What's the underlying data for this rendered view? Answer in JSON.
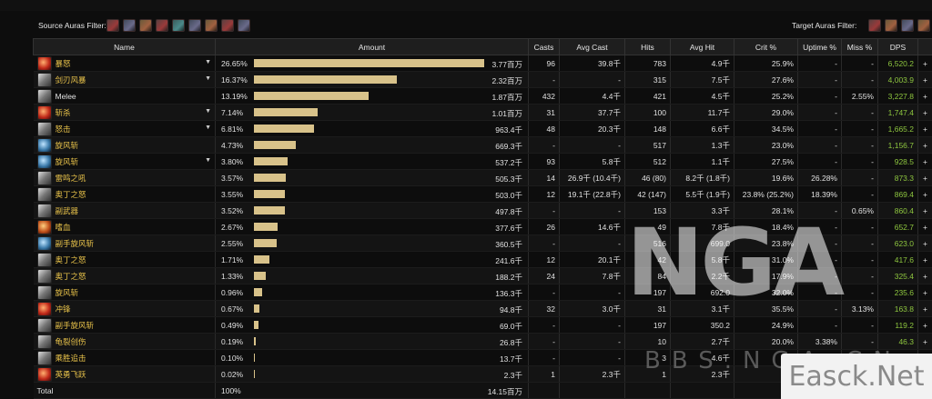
{
  "filters": {
    "source_label": "Source Auras Filter:",
    "target_label": "Target Auras Filter:",
    "source_icons": [
      "aura-icon-1",
      "aura-icon-2",
      "aura-icon-3",
      "aura-icon-4",
      "aura-icon-5",
      "aura-icon-6",
      "aura-icon-7",
      "aura-icon-8",
      "aura-icon-9"
    ],
    "target_icons": [
      "aura-icon-1",
      "aura-icon-2",
      "aura-icon-3",
      "aura-icon-4"
    ]
  },
  "table": {
    "headers": [
      "Name",
      "Amount",
      "Casts",
      "Avg Cast",
      "Hits",
      "Avg Hit",
      "Crit %",
      "Uptime %",
      "Miss %",
      "DPS"
    ],
    "rows": [
      {
        "name": "暴怒",
        "icon": "ic-red",
        "expand": true,
        "pct": "26.65%",
        "bar": 0.98,
        "amount": "3.77百万",
        "casts": "96",
        "avg_cast": "39.8千",
        "hits": "783",
        "avg_hit": "4.9千",
        "crit": "25.9%",
        "uptime": "-",
        "miss": "-",
        "dps": "6,520.2"
      },
      {
        "name": "剑刃风暴",
        "icon": "ic-grey",
        "expand": true,
        "pct": "16.37%",
        "bar": 0.61,
        "amount": "2.32百万",
        "casts": "-",
        "avg_cast": "-",
        "hits": "315",
        "avg_hit": "7.5千",
        "crit": "27.6%",
        "uptime": "-",
        "miss": "-",
        "dps": "4,003.9"
      },
      {
        "name": "Melee",
        "icon": "ic-grey",
        "expand": false,
        "white": true,
        "pct": "13.19%",
        "bar": 0.49,
        "amount": "1.87百万",
        "casts": "432",
        "avg_cast": "4.4千",
        "hits": "421",
        "avg_hit": "4.5千",
        "crit": "25.2%",
        "uptime": "-",
        "miss": "2.55%",
        "dps": "3,227.8"
      },
      {
        "name": "斩杀",
        "icon": "ic-red",
        "expand": true,
        "pct": "7.14%",
        "bar": 0.27,
        "amount": "1.01百万",
        "casts": "31",
        "avg_cast": "37.7千",
        "hits": "100",
        "avg_hit": "11.7千",
        "crit": "29.0%",
        "uptime": "-",
        "miss": "-",
        "dps": "1,747.4"
      },
      {
        "name": "怒击",
        "icon": "ic-grey",
        "expand": true,
        "pct": "6.81%",
        "bar": 0.255,
        "amount": "963.4千",
        "casts": "48",
        "avg_cast": "20.3千",
        "hits": "148",
        "avg_hit": "6.6千",
        "crit": "34.5%",
        "uptime": "-",
        "miss": "-",
        "dps": "1,665.2"
      },
      {
        "name": "旋风斩",
        "icon": "ic-blue",
        "expand": false,
        "pct": "4.73%",
        "bar": 0.178,
        "amount": "669.3千",
        "casts": "-",
        "avg_cast": "-",
        "hits": "517",
        "avg_hit": "1.3千",
        "crit": "23.0%",
        "uptime": "-",
        "miss": "-",
        "dps": "1,156.7"
      },
      {
        "name": "旋风斩",
        "icon": "ic-blue",
        "expand": true,
        "pct": "3.80%",
        "bar": 0.142,
        "amount": "537.2千",
        "casts": "93",
        "avg_cast": "5.8千",
        "hits": "512",
        "avg_hit": "1.1千",
        "crit": "27.5%",
        "uptime": "-",
        "miss": "-",
        "dps": "928.5"
      },
      {
        "name": "雷鸣之吼",
        "icon": "ic-grey",
        "expand": false,
        "pct": "3.57%",
        "bar": 0.134,
        "amount": "505.3千",
        "casts": "14",
        "avg_cast": "26.9千 (10.4千)",
        "hits": "46 (80)",
        "avg_hit": "8.2千 (1.8千)",
        "crit": "19.6%",
        "uptime": "26.28%",
        "miss": "-",
        "dps": "873.3"
      },
      {
        "name": "奥丁之怒",
        "icon": "ic-grey",
        "expand": false,
        "pct": "3.55%",
        "bar": 0.133,
        "amount": "503.0千",
        "casts": "12",
        "avg_cast": "19.1千 (22.8千)",
        "hits": "42 (147)",
        "avg_hit": "5.5千 (1.9千)",
        "crit": "23.8% (25.2%)",
        "uptime": "18.39%",
        "miss": "-",
        "dps": "869.4"
      },
      {
        "name": "副武器",
        "icon": "ic-grey",
        "expand": false,
        "pct": "3.52%",
        "bar": 0.132,
        "amount": "497.8千",
        "casts": "-",
        "avg_cast": "-",
        "hits": "153",
        "avg_hit": "3.3千",
        "crit": "28.1%",
        "uptime": "-",
        "miss": "0.65%",
        "dps": "860.4"
      },
      {
        "name": "嗜血",
        "icon": "ic-orange",
        "expand": false,
        "pct": "2.67%",
        "bar": 0.1,
        "amount": "377.6千",
        "casts": "26",
        "avg_cast": "14.6千",
        "hits": "49",
        "avg_hit": "7.8千",
        "crit": "18.4%",
        "uptime": "-",
        "miss": "-",
        "dps": "652.7"
      },
      {
        "name": "副手旋风斩",
        "icon": "ic-blue",
        "expand": false,
        "pct": "2.55%",
        "bar": 0.096,
        "amount": "360.5千",
        "casts": "-",
        "avg_cast": "-",
        "hits": "516",
        "avg_hit": "699.0",
        "crit": "23.8%",
        "uptime": "-",
        "miss": "-",
        "dps": "623.0"
      },
      {
        "name": "奥丁之怒",
        "icon": "ic-grey",
        "expand": false,
        "pct": "1.71%",
        "bar": 0.064,
        "amount": "241.6千",
        "casts": "12",
        "avg_cast": "20.1千",
        "hits": "42",
        "avg_hit": "5.8千",
        "crit": "31.0%",
        "uptime": "-",
        "miss": "-",
        "dps": "417.6"
      },
      {
        "name": "奥丁之怒",
        "icon": "ic-grey",
        "expand": false,
        "pct": "1.33%",
        "bar": 0.05,
        "amount": "188.2千",
        "casts": "24",
        "avg_cast": "7.8千",
        "hits": "84",
        "avg_hit": "2.2千",
        "crit": "17.9%",
        "uptime": "-",
        "miss": "-",
        "dps": "325.4"
      },
      {
        "name": "旋风斩",
        "icon": "ic-grey",
        "expand": false,
        "pct": "0.96%",
        "bar": 0.036,
        "amount": "136.3千",
        "casts": "-",
        "avg_cast": "-",
        "hits": "197",
        "avg_hit": "692.0",
        "crit": "32.0%",
        "uptime": "-",
        "miss": "-",
        "dps": "235.6"
      },
      {
        "name": "冲锋",
        "icon": "ic-red",
        "expand": false,
        "pct": "0.67%",
        "bar": 0.025,
        "amount": "94.8千",
        "casts": "32",
        "avg_cast": "3.0千",
        "hits": "31",
        "avg_hit": "3.1千",
        "crit": "35.5%",
        "uptime": "-",
        "miss": "3.13%",
        "dps": "163.8"
      },
      {
        "name": "副手旋风斩",
        "icon": "ic-grey",
        "expand": false,
        "pct": "0.49%",
        "bar": 0.018,
        "amount": "69.0千",
        "casts": "-",
        "avg_cast": "-",
        "hits": "197",
        "avg_hit": "350.2",
        "crit": "24.9%",
        "uptime": "-",
        "miss": "-",
        "dps": "119.2"
      },
      {
        "name": "龟裂创伤",
        "icon": "ic-grey",
        "expand": false,
        "pct": "0.19%",
        "bar": 0.007,
        "amount": "26.8千",
        "casts": "-",
        "avg_cast": "-",
        "hits": "10",
        "avg_hit": "2.7千",
        "crit": "20.0%",
        "uptime": "3.38%",
        "miss": "-",
        "dps": "46.3"
      },
      {
        "name": "乘胜追击",
        "icon": "ic-grey",
        "expand": false,
        "pct": "0.10%",
        "bar": 0.004,
        "amount": "13.7千",
        "casts": "-",
        "avg_cast": "-",
        "hits": "3",
        "avg_hit": "4.6千",
        "crit": "-",
        "uptime": "-",
        "miss": "-",
        "dps": "23.7"
      },
      {
        "name": "英勇飞跃",
        "icon": "ic-red",
        "expand": false,
        "pct": "0.02%",
        "bar": 0.001,
        "amount": "2.3千",
        "casts": "1",
        "avg_cast": "2.3千",
        "hits": "1",
        "avg_hit": "2.3千",
        "crit": "-",
        "uptime": "-",
        "miss": "-",
        "dps": "3.9"
      }
    ],
    "total": {
      "label": "Total",
      "pct": "100%",
      "amount": "14.15百万"
    }
  },
  "watermark": {
    "logo": "NGA",
    "site": "BBS.NGA.CN"
  },
  "badge": {
    "text": "Easck.Net"
  }
}
